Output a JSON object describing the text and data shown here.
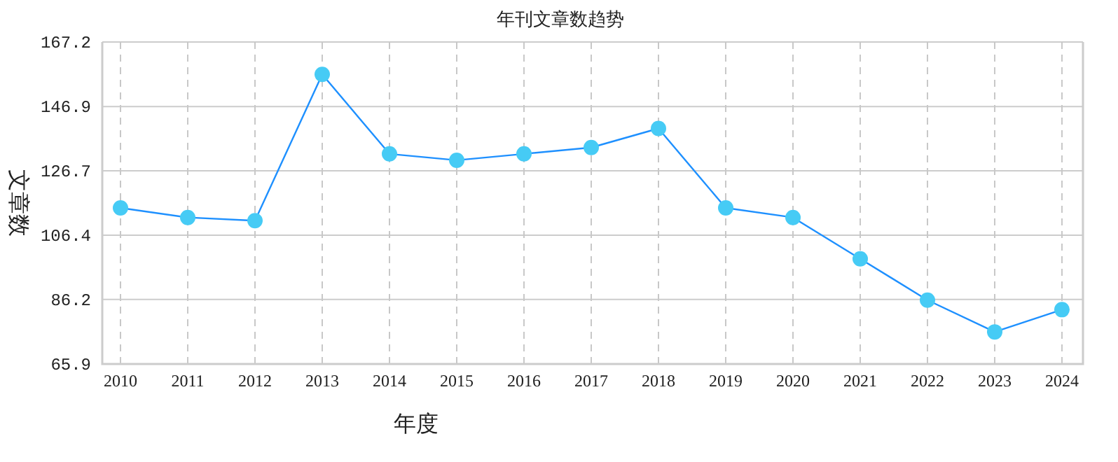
{
  "chart_data": {
    "type": "line",
    "title": "年刊文章数趋势",
    "xlabel": "年度",
    "ylabel": "文章数",
    "categories": [
      "2010",
      "2011",
      "2012",
      "2013",
      "2014",
      "2015",
      "2016",
      "2017",
      "2018",
      "2019",
      "2020",
      "2021",
      "2022",
      "2023",
      "2024"
    ],
    "series": [
      {
        "color": "#1e90ff",
        "values": [
          115,
          112,
          111,
          157,
          132,
          130,
          132,
          134,
          140,
          115,
          112,
          99,
          86,
          76,
          83
        ]
      }
    ],
    "ylim": [
      65.9,
      167.2
    ],
    "yticks": [
      65.9,
      86.2,
      106.4,
      126.7,
      146.9,
      167.2
    ],
    "grid": true,
    "marker": "circle"
  }
}
